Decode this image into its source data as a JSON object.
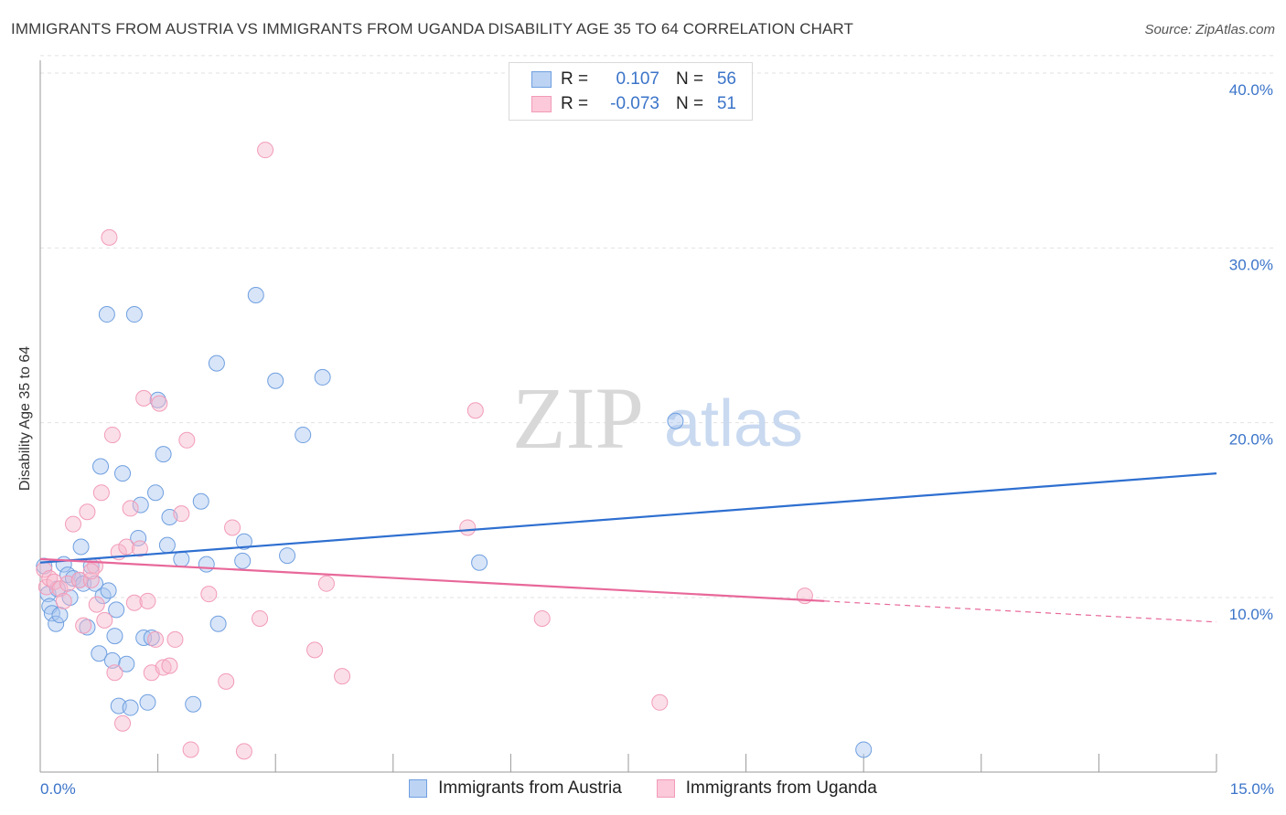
{
  "header": {
    "title": "IMMIGRANTS FROM AUSTRIA VS IMMIGRANTS FROM UGANDA DISABILITY AGE 35 TO 64 CORRELATION CHART",
    "source": "Source: ZipAtlas.com"
  },
  "legend": {
    "austria": {
      "r_label": "R =",
      "r_value": "0.107",
      "n_label": "N =",
      "n_value": "56"
    },
    "uganda": {
      "r_label": "R =",
      "r_value": "-0.073",
      "n_label": "N =",
      "n_value": "51"
    }
  },
  "watermark": {
    "zip": "ZIP",
    "atlas": "atlas"
  },
  "chart_data": {
    "type": "scatter",
    "title": "IMMIGRANTS FROM AUSTRIA VS IMMIGRANTS FROM UGANDA DISABILITY AGE 35 TO 64 CORRELATION CHART",
    "xlabel": "",
    "ylabel": "Disability Age 35 to 64",
    "xlim": [
      0,
      15
    ],
    "ylim": [
      0,
      41
    ],
    "x_tick_labels": [
      "0.0%",
      "15.0%"
    ],
    "y_ticks": [
      10,
      20,
      30,
      40
    ],
    "y_tick_labels": [
      "10.0%",
      "20.0%",
      "30.0%",
      "40.0%"
    ],
    "grid": true,
    "legend_position": "top-center",
    "colors": {
      "austria": "#6f9fe0",
      "austria_line": "#2e6fd0",
      "uganda": "#f29bb8",
      "uganda_line": "#e8689a"
    },
    "series": [
      {
        "name": "Immigrants from Austria",
        "points": [
          [
            0.05,
            11.8
          ],
          [
            0.1,
            10.2
          ],
          [
            0.12,
            9.5
          ],
          [
            0.15,
            9.1
          ],
          [
            0.2,
            8.5
          ],
          [
            0.22,
            10.5
          ],
          [
            0.3,
            11.9
          ],
          [
            0.35,
            11.3
          ],
          [
            0.38,
            10.0
          ],
          [
            0.42,
            11.1
          ],
          [
            0.5,
            11.0
          ],
          [
            0.52,
            12.9
          ],
          [
            0.55,
            10.8
          ],
          [
            0.6,
            8.3
          ],
          [
            0.65,
            11.8
          ],
          [
            0.7,
            10.8
          ],
          [
            0.75,
            6.8
          ],
          [
            0.77,
            17.5
          ],
          [
            0.8,
            10.1
          ],
          [
            0.85,
            26.2
          ],
          [
            0.87,
            10.4
          ],
          [
            0.92,
            6.4
          ],
          [
            0.95,
            7.8
          ],
          [
            0.97,
            9.3
          ],
          [
            1.0,
            3.8
          ],
          [
            1.05,
            17.1
          ],
          [
            1.1,
            6.2
          ],
          [
            1.15,
            3.7
          ],
          [
            1.2,
            26.2
          ],
          [
            1.25,
            13.4
          ],
          [
            1.28,
            15.3
          ],
          [
            1.32,
            7.7
          ],
          [
            1.37,
            4.0
          ],
          [
            1.42,
            7.7
          ],
          [
            1.47,
            16.0
          ],
          [
            1.5,
            21.3
          ],
          [
            1.57,
            18.2
          ],
          [
            1.62,
            13.0
          ],
          [
            1.65,
            14.6
          ],
          [
            1.8,
            12.2
          ],
          [
            1.95,
            3.9
          ],
          [
            2.05,
            15.5
          ],
          [
            2.12,
            11.9
          ],
          [
            2.27,
            8.5
          ],
          [
            2.25,
            23.4
          ],
          [
            2.58,
            12.1
          ],
          [
            2.6,
            13.2
          ],
          [
            2.75,
            27.3
          ],
          [
            3.0,
            22.4
          ],
          [
            3.15,
            12.4
          ],
          [
            3.35,
            19.3
          ],
          [
            3.6,
            22.6
          ],
          [
            5.6,
            12.0
          ],
          [
            8.1,
            20.1
          ],
          [
            10.5,
            1.3
          ],
          [
            0.25,
            9.0
          ]
        ],
        "trend": {
          "x": [
            0,
            15
          ],
          "y": [
            12.0,
            17.1
          ]
        }
      },
      {
        "name": "Immigrants from Uganda",
        "points": [
          [
            0.05,
            11.6
          ],
          [
            0.08,
            10.6
          ],
          [
            0.12,
            11.1
          ],
          [
            0.18,
            10.9
          ],
          [
            0.25,
            10.5
          ],
          [
            0.3,
            9.8
          ],
          [
            0.35,
            10.8
          ],
          [
            0.42,
            14.2
          ],
          [
            0.5,
            11.0
          ],
          [
            0.55,
            8.4
          ],
          [
            0.6,
            14.9
          ],
          [
            0.65,
            11.0
          ],
          [
            0.7,
            11.8
          ],
          [
            0.72,
            9.6
          ],
          [
            0.78,
            16.0
          ],
          [
            0.82,
            8.7
          ],
          [
            0.88,
            30.6
          ],
          [
            0.92,
            19.3
          ],
          [
            0.95,
            5.7
          ],
          [
            1.0,
            12.6
          ],
          [
            1.05,
            2.8
          ],
          [
            1.1,
            12.9
          ],
          [
            1.15,
            15.1
          ],
          [
            1.2,
            9.7
          ],
          [
            1.27,
            12.8
          ],
          [
            1.32,
            21.4
          ],
          [
            1.37,
            9.8
          ],
          [
            1.42,
            5.7
          ],
          [
            1.47,
            7.6
          ],
          [
            1.52,
            21.1
          ],
          [
            1.57,
            6.0
          ],
          [
            1.65,
            6.1
          ],
          [
            1.72,
            7.6
          ],
          [
            1.8,
            14.8
          ],
          [
            1.87,
            19.0
          ],
          [
            1.92,
            1.3
          ],
          [
            2.15,
            10.2
          ],
          [
            2.37,
            5.2
          ],
          [
            2.45,
            14.0
          ],
          [
            2.6,
            1.2
          ],
          [
            2.8,
            8.8
          ],
          [
            2.87,
            35.6
          ],
          [
            3.5,
            7.0
          ],
          [
            3.65,
            10.8
          ],
          [
            3.85,
            5.5
          ],
          [
            5.55,
            20.7
          ],
          [
            5.45,
            14.0
          ],
          [
            6.4,
            8.8
          ],
          [
            7.9,
            4.0
          ],
          [
            9.75,
            10.1
          ],
          [
            0.65,
            11.5
          ]
        ],
        "trend": {
          "x": [
            0,
            10
          ],
          "y": [
            12.2,
            9.8
          ]
        },
        "trend_extension": {
          "x": [
            10,
            15
          ],
          "y": [
            9.8,
            8.6
          ]
        }
      }
    ]
  },
  "bottom_legend": {
    "austria_label": "Immigrants from Austria",
    "uganda_label": "Immigrants from Uganda"
  }
}
